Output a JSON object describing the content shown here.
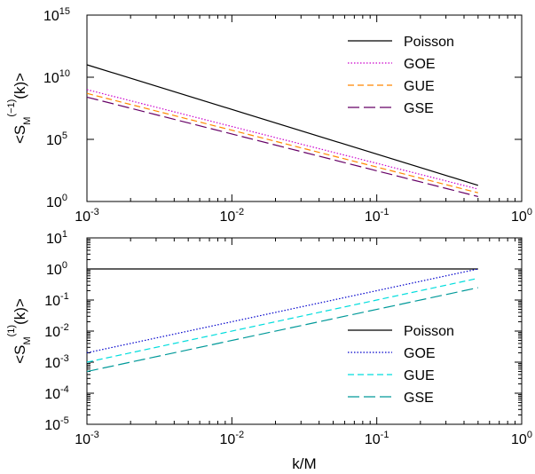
{
  "chart_data": [
    {
      "type": "line",
      "x_scale": "log",
      "y_scale": "log",
      "xlim": [
        0.001,
        1
      ],
      "ylim": [
        1,
        1000000000000000.0
      ],
      "x_ticks": [
        {
          "value": 0.001,
          "base": "10",
          "exp": "-3"
        },
        {
          "value": 0.01,
          "base": "10",
          "exp": "-2"
        },
        {
          "value": 0.1,
          "base": "10",
          "exp": "-1"
        },
        {
          "value": 1,
          "base": "10",
          "exp": "0"
        }
      ],
      "y_ticks": [
        {
          "value": 1,
          "base": "10",
          "exp": "0"
        },
        {
          "value": 100000,
          "base": "10",
          "exp": "5"
        },
        {
          "value": 10000000000,
          "base": "10",
          "exp": "10"
        },
        {
          "value": 1000000000000000.0,
          "base": "10",
          "exp": "15"
        }
      ],
      "ylabel": {
        "pre": "<S",
        "sub": "M",
        "sup": "(−1)",
        "post": "(k)>"
      },
      "xlabel": "",
      "legend_position": "top-right",
      "series": [
        {
          "name": "Poisson",
          "color": "#000000",
          "dash": "",
          "x": [
            0.001,
            0.5
          ],
          "y": [
            100000000000,
            20
          ]
        },
        {
          "name": "GOE",
          "color": "#cc00cc",
          "dash": "1.5,2",
          "x": [
            0.001,
            0.5
          ],
          "y": [
            1000000000,
            10
          ]
        },
        {
          "name": "GUE",
          "color": "#ff8800",
          "dash": "7,4",
          "x": [
            0.001,
            0.5
          ],
          "y": [
            500000000,
            5
          ]
        },
        {
          "name": "GSE",
          "color": "#660066",
          "dash": "13,5",
          "x": [
            0.001,
            0.5
          ],
          "y": [
            250000000,
            2.5
          ]
        }
      ]
    },
    {
      "type": "line",
      "x_scale": "log",
      "y_scale": "log",
      "xlim": [
        0.001,
        1
      ],
      "ylim": [
        1e-05,
        10
      ],
      "x_ticks": [
        {
          "value": 0.001,
          "base": "10",
          "exp": "-3"
        },
        {
          "value": 0.01,
          "base": "10",
          "exp": "-2"
        },
        {
          "value": 0.1,
          "base": "10",
          "exp": "-1"
        },
        {
          "value": 1,
          "base": "10",
          "exp": "0"
        }
      ],
      "y_ticks": [
        {
          "value": 1e-05,
          "base": "10",
          "exp": "-5"
        },
        {
          "value": 0.0001,
          "base": "10",
          "exp": "-4"
        },
        {
          "value": 0.001,
          "base": "10",
          "exp": "-3"
        },
        {
          "value": 0.01,
          "base": "10",
          "exp": "-2"
        },
        {
          "value": 0.1,
          "base": "10",
          "exp": "-1"
        },
        {
          "value": 1,
          "base": "10",
          "exp": "0"
        },
        {
          "value": 10,
          "base": "10",
          "exp": "1"
        }
      ],
      "ylabel": {
        "pre": "<S",
        "sub": "M",
        "sup": "(1)",
        "post": "(k)>"
      },
      "xlabel": "k/M",
      "legend_position": "bottom-right",
      "series": [
        {
          "name": "Poisson",
          "color": "#000000",
          "dash": "",
          "x": [
            0.001,
            0.5
          ],
          "y": [
            1,
            1
          ]
        },
        {
          "name": "GOE",
          "color": "#0000cc",
          "dash": "1.5,2",
          "x": [
            0.001,
            0.5
          ],
          "y": [
            0.002,
            1
          ]
        },
        {
          "name": "GUE",
          "color": "#00dddd",
          "dash": "7,4",
          "x": [
            0.001,
            0.5
          ],
          "y": [
            0.001,
            0.5
          ]
        },
        {
          "name": "GSE",
          "color": "#009999",
          "dash": "13,5",
          "x": [
            0.001,
            0.5
          ],
          "y": [
            0.0005,
            0.25
          ]
        }
      ]
    }
  ]
}
